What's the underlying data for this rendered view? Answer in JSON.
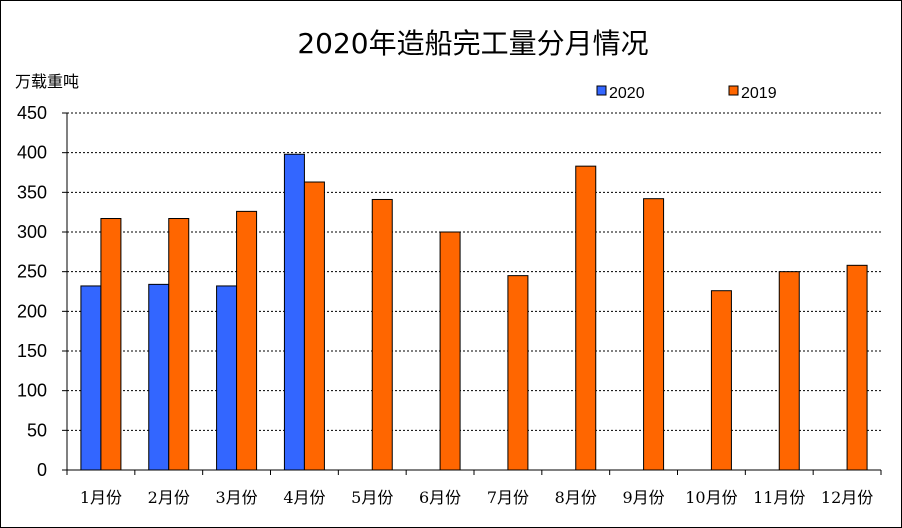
{
  "chart_data": {
    "type": "bar",
    "title": "2020年造船完工量分月情况",
    "ylabel": "万载重吨",
    "xlabel": "",
    "ylim": [
      0,
      450
    ],
    "ytick_step": 50,
    "grid": true,
    "legend_position": "top-right",
    "categories": [
      "1月份",
      "2月份",
      "3月份",
      "4月份",
      "5月份",
      "6月份",
      "7月份",
      "8月份",
      "9月份",
      "10月份",
      "11月份",
      "12月份"
    ],
    "series": [
      {
        "name": "2020",
        "color": "#3366ff",
        "values": [
          232,
          234,
          232,
          398,
          null,
          null,
          null,
          null,
          null,
          null,
          null,
          null
        ]
      },
      {
        "name": "2019",
        "color": "#ff6600",
        "values": [
          317,
          317,
          326,
          363,
          341,
          300,
          245,
          383,
          342,
          226,
          250,
          258
        ]
      }
    ]
  }
}
